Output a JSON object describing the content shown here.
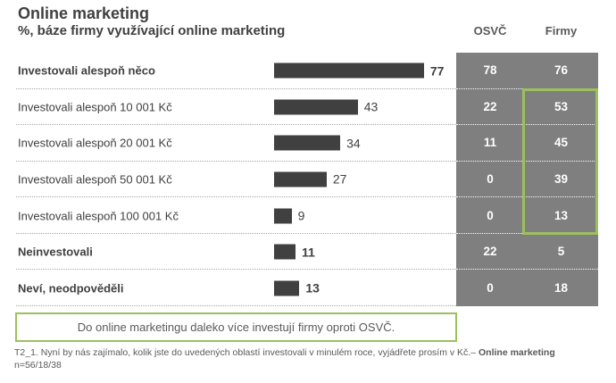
{
  "header": {
    "title": "Online marketing",
    "subtitle": "%, báze firmy využívající online marketing"
  },
  "columns": {
    "osvc": "OSVČ",
    "firmy": "Firmy"
  },
  "rows": [
    {
      "label": "Investovali alespoň něco",
      "bar": 77,
      "osvc": 78,
      "firmy": 76
    },
    {
      "label": "Investovali alespoň 10 001 Kč",
      "bar": 43,
      "osvc": 22,
      "firmy": 53
    },
    {
      "label": "Investovali alespoň 20 001 Kč",
      "bar": 34,
      "osvc": 11,
      "firmy": 45
    },
    {
      "label": "Investovali alespoň 50 001 Kč",
      "bar": 27,
      "osvc": 0,
      "firmy": 39
    },
    {
      "label": "Investovali alespoň 100 001 Kč",
      "bar": 9,
      "osvc": 0,
      "firmy": 13
    },
    {
      "label": "Neinvestovali",
      "bar": 11,
      "osvc": 22,
      "firmy": 5
    },
    {
      "label": "Neví, neodpověděli",
      "bar": 13,
      "osvc": 0,
      "firmy": 18
    }
  ],
  "annotation": {
    "text": "Do online marketingu daleko více investují firmy oproti OSVČ."
  },
  "footer": {
    "question": "T2_1. Nyní by nás zajímalo, kolik jste do uvedených oblastí investovali v minulém roce, vyjádřete prosím v Kč.–",
    "question_bold": " Online marketing",
    "sample": "n=56/18/38"
  },
  "colors": {
    "bar": "#404040",
    "cell_background": "#7f7f7f",
    "cell_text": "#ffffff",
    "highlight_green": "#9cc05e",
    "text_dark": "#404040",
    "text_gray": "#595959"
  },
  "chart_data": {
    "type": "bar",
    "orientation": "horizontal",
    "title": "Online marketing",
    "subtitle": "%, báze firmy využívající online marketing",
    "categories": [
      "Investovali alespoň něco",
      "Investovali alespoň 10 001 Kč",
      "Investovali alespoň 20 001 Kč",
      "Investovali alespoň 50 001 Kč",
      "Investovali alespoň 100 001 Kč",
      "Neinvestovali",
      "Neví, neodpověděli"
    ],
    "series": [
      {
        "name": "(bars)",
        "values": [
          77,
          43,
          34,
          27,
          9,
          11,
          13
        ]
      },
      {
        "name": "OSVČ",
        "values": [
          78,
          22,
          11,
          0,
          0,
          22,
          0
        ]
      },
      {
        "name": "Firmy",
        "values": [
          76,
          53,
          45,
          39,
          13,
          5,
          18
        ]
      }
    ],
    "xlim": [
      0,
      100
    ],
    "grid": false,
    "legend_position": "column headers top-right",
    "annotations": [
      "Do online marketingu daleko více investují firmy oproti OSVČ.",
      "Green rectangle highlights Firmy values for rows 10 001 Kč through 100 001 Kč"
    ]
  }
}
